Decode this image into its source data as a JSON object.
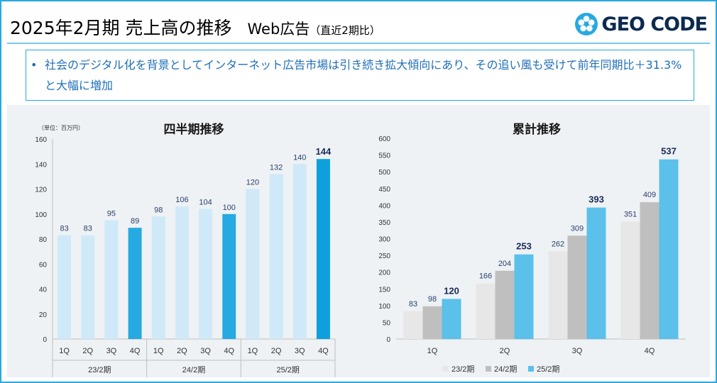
{
  "header": {
    "title": "2025年2月期 売上高の推移",
    "subtitle": "Web広告",
    "note": "（直近2期比）",
    "logo_text": "GEO CODE"
  },
  "summary": {
    "bullet": "•",
    "text": "社会のデジタル化を背景としてインターネット広告市場は引き続き拡大傾向にあり、その追い風も受けて前年同期比＋31.3%と大幅に増加"
  },
  "colors": {
    "frame": "#27a9e1",
    "text_blue": "#1f6fb8",
    "fy23": "#cfe9f8",
    "fy24": "#cfe9f8",
    "fy25": "#cfe9f8",
    "q4_23": "#27a9e1",
    "q4_24": "#27a9e1",
    "q4_25": "#0ea0dc",
    "cum_23": "#e7e7e7",
    "cum_24": "#bfbfbf",
    "cum_25": "#5bc0ea"
  },
  "chart_data": [
    {
      "type": "bar",
      "title": "四半期推移",
      "unit_label": "（単位：百万円）",
      "ylim": [
        0,
        160
      ],
      "yticks": [
        0,
        20,
        40,
        60,
        80,
        100,
        120,
        140,
        160
      ],
      "groups": [
        {
          "name": "23/2期",
          "categories": [
            "1Q",
            "2Q",
            "3Q",
            "4Q"
          ],
          "values": [
            83,
            83,
            95,
            89
          ]
        },
        {
          "name": "24/2期",
          "categories": [
            "1Q",
            "2Q",
            "3Q",
            "4Q"
          ],
          "values": [
            98,
            106,
            104,
            100
          ]
        },
        {
          "name": "25/2期",
          "categories": [
            "1Q",
            "2Q",
            "3Q",
            "4Q"
          ],
          "values": [
            120,
            132,
            140,
            144
          ]
        }
      ]
    },
    {
      "type": "bar",
      "title": "累計推移",
      "ylim": [
        0,
        600
      ],
      "yticks": [
        0,
        50,
        100,
        150,
        200,
        250,
        300,
        350,
        400,
        450,
        500,
        550,
        600
      ],
      "categories": [
        "1Q",
        "2Q",
        "3Q",
        "4Q"
      ],
      "series": [
        {
          "name": "23/2期",
          "values": [
            83,
            166,
            262,
            351
          ]
        },
        {
          "name": "24/2期",
          "values": [
            98,
            204,
            309,
            409
          ]
        },
        {
          "name": "25/2期",
          "values": [
            120,
            253,
            393,
            537
          ]
        }
      ],
      "legend_position": "bottom"
    }
  ]
}
